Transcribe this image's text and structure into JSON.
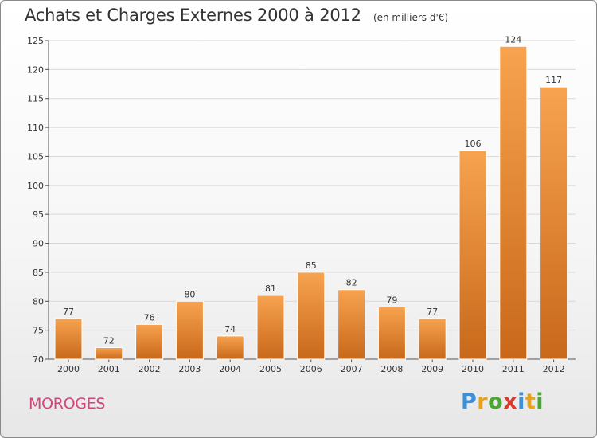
{
  "header": {
    "title": "Achats et Charges Externes 2000 à 2012",
    "subtitle": "(en milliers d'€)"
  },
  "footer": {
    "commune": "MOROGES",
    "logo": {
      "text": "Proxiti",
      "letters": [
        {
          "ch": "P",
          "color": "#3d8fd6"
        },
        {
          "ch": "r",
          "color": "#e8a21a"
        },
        {
          "ch": "o",
          "color": "#4aa832"
        },
        {
          "ch": "x",
          "color": "#d83a2e"
        },
        {
          "ch": "i",
          "color": "#3d8fd6"
        },
        {
          "ch": "t",
          "color": "#e8a21a"
        },
        {
          "ch": "i",
          "color": "#4aa832"
        }
      ]
    }
  },
  "chart_data": {
    "type": "bar",
    "categories": [
      "2000",
      "2001",
      "2002",
      "2003",
      "2004",
      "2005",
      "2006",
      "2007",
      "2008",
      "2009",
      "2010",
      "2011",
      "2012"
    ],
    "values": [
      77,
      72,
      76,
      80,
      74,
      81,
      85,
      82,
      79,
      77,
      106,
      124,
      117
    ],
    "data_labels": [
      "77",
      "72",
      "76",
      "80",
      "74",
      "81",
      "85",
      "82",
      "79",
      "77",
      "106",
      "124",
      "117"
    ],
    "ylim": [
      70,
      125
    ],
    "yticks": [
      70,
      75,
      80,
      85,
      90,
      95,
      100,
      105,
      110,
      115,
      120,
      125
    ],
    "grid": true,
    "xlabel": "",
    "ylabel": "",
    "colors": {
      "bar_light": "#f7a34f",
      "bar_dark": "#c8681a",
      "grid": "#d8d8d8",
      "axis": "#555555",
      "text": "#333333"
    }
  }
}
